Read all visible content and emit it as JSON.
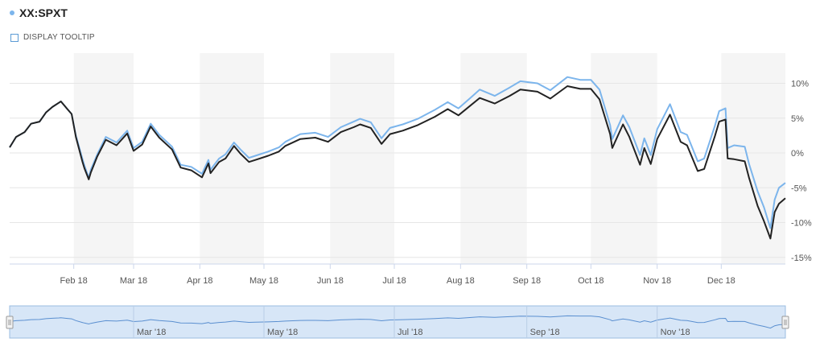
{
  "legend": {
    "symbol_color": "#7cb5ec",
    "series_label": "XX:SPXT"
  },
  "tooltip_toggle": {
    "label": "DISPLAY TOOLTIP"
  },
  "colors": {
    "series_light": "#7cb5ec",
    "series_dark": "#222222",
    "band": "#f5f5f5",
    "grid": "#e6e6e6",
    "navigator_fill": "#d7e6f7",
    "navigator_line": "#5a8fd0",
    "navigator_border": "#9bbce0"
  },
  "navigator": {
    "tick_labels": [
      "Mar '18",
      "May '18",
      "Jul '18",
      "Sep '18",
      "Nov '18"
    ]
  },
  "chart_data": {
    "type": "line",
    "title": "",
    "xlabel": "",
    "ylabel": "",
    "x_tick_labels": [
      "Feb 18",
      "Mar 18",
      "Apr 18",
      "May 18",
      "Jun 18",
      "Jul 18",
      "Aug 18",
      "Sep 18",
      "Oct 18",
      "Nov 18",
      "Dec 18"
    ],
    "y_tick_labels": [
      "10%",
      "5%",
      "0%",
      "-5%",
      "-10%",
      "-15%"
    ],
    "yticks": [
      10,
      5,
      0,
      -5,
      -10,
      -15
    ],
    "ylim": [
      -15,
      14
    ],
    "xlim": [
      "2018-01-02",
      "2018-12-31"
    ],
    "grid": true,
    "legend_position": "top-left",
    "x": [
      "2018-01-02",
      "2018-01-05",
      "2018-01-09",
      "2018-01-12",
      "2018-01-16",
      "2018-01-19",
      "2018-01-22",
      "2018-01-25",
      "2018-01-26",
      "2018-01-29",
      "2018-01-31",
      "2018-02-02",
      "2018-02-05",
      "2018-02-06",
      "2018-02-08",
      "2018-02-09",
      "2018-02-12",
      "2018-02-16",
      "2018-02-21",
      "2018-02-26",
      "2018-03-01",
      "2018-03-05",
      "2018-03-09",
      "2018-03-13",
      "2018-03-19",
      "2018-03-23",
      "2018-03-28",
      "2018-04-02",
      "2018-04-05",
      "2018-04-06",
      "2018-04-10",
      "2018-04-13",
      "2018-04-17",
      "2018-04-20",
      "2018-04-24",
      "2018-04-27",
      "2018-05-03",
      "2018-05-08",
      "2018-05-11",
      "2018-05-18",
      "2018-05-25",
      "2018-05-31",
      "2018-06-06",
      "2018-06-12",
      "2018-06-15",
      "2018-06-20",
      "2018-06-25",
      "2018-06-29",
      "2018-07-05",
      "2018-07-12",
      "2018-07-20",
      "2018-07-26",
      "2018-07-31",
      "2018-08-06",
      "2018-08-10",
      "2018-08-17",
      "2018-08-24",
      "2018-08-29",
      "2018-09-06",
      "2018-09-12",
      "2018-09-20",
      "2018-09-26",
      "2018-10-01",
      "2018-10-05",
      "2018-10-10",
      "2018-10-11",
      "2018-10-16",
      "2018-10-19",
      "2018-10-24",
      "2018-10-26",
      "2018-10-29",
      "2018-11-01",
      "2018-11-07",
      "2018-11-12",
      "2018-11-15",
      "2018-11-20",
      "2018-11-23",
      "2018-11-28",
      "2018-11-30",
      "2018-12-03",
      "2018-12-04",
      "2018-12-07",
      "2018-12-12",
      "2018-12-14",
      "2018-12-18",
      "2018-12-21",
      "2018-12-24",
      "2018-12-26",
      "2018-12-28",
      "2018-12-31"
    ],
    "series": [
      {
        "name": "",
        "color": "#7cb5ec",
        "values": [
          0.8,
          2.3,
          3.0,
          4.2,
          4.5,
          5.8,
          6.6,
          7.2,
          7.4,
          6.3,
          5.6,
          2.5,
          -0.8,
          -1.8,
          -3.6,
          -2.4,
          -0.2,
          2.3,
          1.5,
          3.2,
          0.7,
          1.6,
          4.2,
          2.6,
          0.9,
          -1.7,
          -2.0,
          -3.0,
          -1.0,
          -2.4,
          -0.8,
          -0.2,
          1.5,
          0.5,
          -0.7,
          -0.4,
          0.2,
          0.8,
          1.6,
          2.7,
          2.9,
          2.3,
          3.7,
          4.5,
          4.9,
          4.4,
          2.1,
          3.6,
          4.1,
          4.9,
          6.2,
          7.3,
          6.4,
          8.0,
          9.1,
          8.2,
          9.4,
          10.3,
          10.0,
          9.0,
          10.9,
          10.5,
          10.5,
          9.1,
          4.0,
          2.0,
          5.4,
          3.7,
          -0.3,
          2.1,
          -0.3,
          3.4,
          7.0,
          3.0,
          2.6,
          -1.2,
          -0.8,
          3.9,
          6.0,
          6.4,
          0.7,
          1.1,
          0.9,
          -1.6,
          -5.5,
          -7.8,
          -10.8,
          -6.7,
          -5.0,
          -4.3
        ]
      },
      {
        "name": "",
        "color": "#222222",
        "values": [
          0.8,
          2.3,
          3.0,
          4.2,
          4.5,
          5.8,
          6.6,
          7.2,
          7.4,
          6.3,
          5.6,
          2.3,
          -1.2,
          -2.2,
          -3.8,
          -2.8,
          -0.5,
          1.9,
          1.1,
          2.8,
          0.3,
          1.2,
          3.8,
          2.2,
          0.5,
          -2.1,
          -2.5,
          -3.5,
          -1.5,
          -2.9,
          -1.3,
          -0.8,
          1.0,
          -0.1,
          -1.3,
          -1.0,
          -0.4,
          0.2,
          1.0,
          2.0,
          2.2,
          1.6,
          3.0,
          3.7,
          4.1,
          3.6,
          1.3,
          2.7,
          3.2,
          4.0,
          5.2,
          6.3,
          5.4,
          6.9,
          7.9,
          7.1,
          8.2,
          9.1,
          8.8,
          7.8,
          9.6,
          9.2,
          9.2,
          7.7,
          2.7,
          0.7,
          4.1,
          2.3,
          -1.7,
          0.7,
          -1.6,
          2.0,
          5.5,
          1.6,
          1.1,
          -2.6,
          -2.3,
          2.4,
          4.5,
          4.8,
          -0.8,
          -0.9,
          -1.2,
          -3.6,
          -7.6,
          -9.8,
          -12.3,
          -8.5,
          -7.3,
          -6.5
        ]
      }
    ]
  }
}
